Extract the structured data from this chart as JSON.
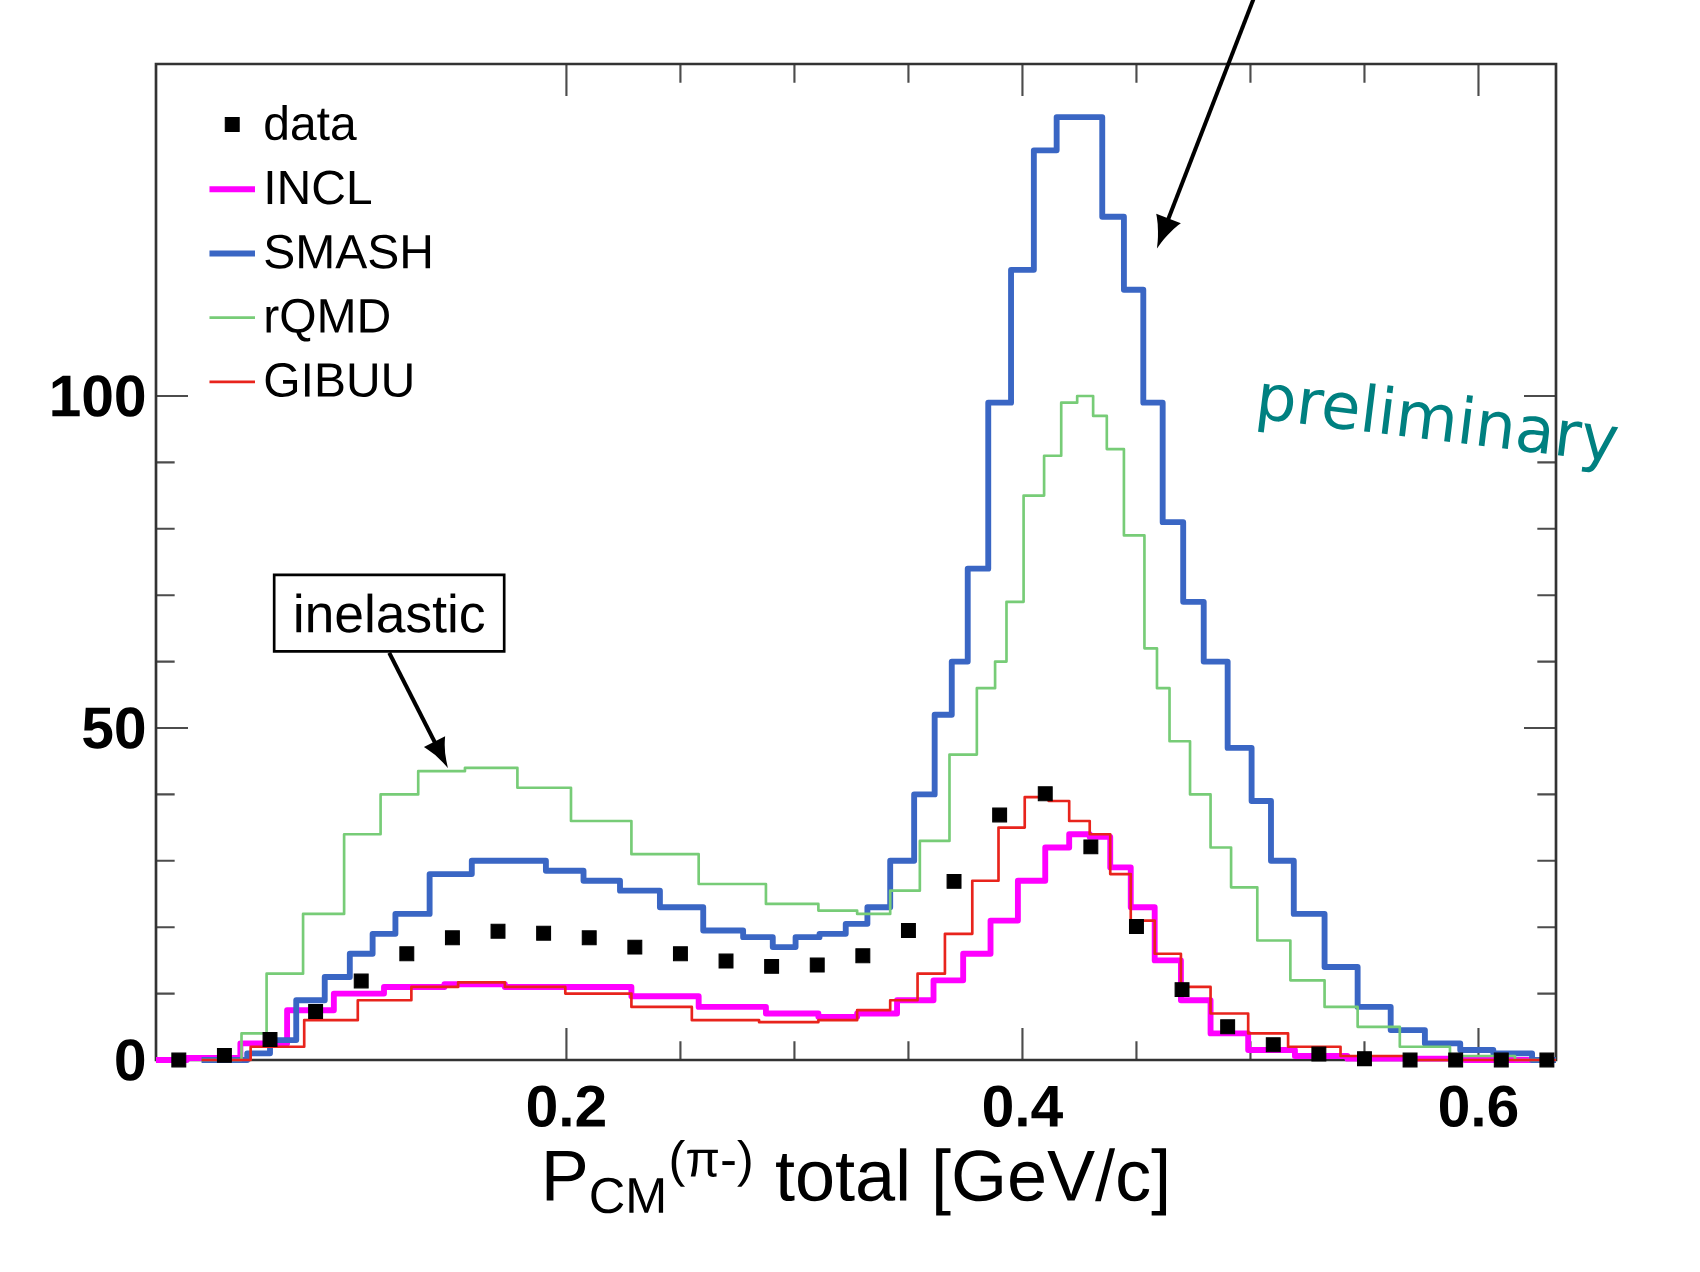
{
  "chart_data": {
    "type": "step",
    "xlabel": "P$_{CM}$$^{(π-)}$ total [GeV/c]",
    "xlim": [
      0.02,
      0.634
    ],
    "ylim": [
      0,
      150
    ],
    "xticks": [
      0.2,
      0.4,
      0.6
    ],
    "yticks": [
      0,
      50,
      100
    ],
    "legend": "top left",
    "marker": "none",
    "series": [
      {
        "name": "data",
        "type": "scatter",
        "marker": "square",
        "color": "#000000",
        "x": [
          0.03,
          0.05,
          0.07,
          0.09,
          0.11,
          0.13,
          0.15,
          0.17,
          0.19,
          0.21,
          0.23,
          0.25,
          0.27,
          0.29,
          0.31,
          0.33,
          0.35,
          0.37,
          0.39,
          0.41,
          0.43,
          0.45,
          0.47,
          0.49,
          0.51,
          0.53,
          0.55,
          0.57,
          0.59,
          0.61,
          0.63
        ],
        "values": [
          0,
          0.7,
          3.1,
          7.3,
          11.9,
          16.0,
          18.4,
          19.4,
          19.1,
          18.4,
          17.0,
          16.0,
          14.9,
          14.1,
          14.3,
          15.7,
          19.5,
          26.9,
          36.9,
          40.1,
          32.1,
          20.1,
          10.6,
          5.0,
          2.3,
          0.9,
          0.2,
          0,
          0,
          0,
          0
        ]
      },
      {
        "name": "INCL",
        "color": "#ff00ff",
        "x": [
          0.02,
          0.047,
          0.067,
          0.088,
          0.108,
          0.132,
          0.161,
          0.185,
          0.214,
          0.243,
          0.273,
          0.302,
          0.319,
          0.336,
          0.354,
          0.368,
          0.38,
          0.392,
          0.404,
          0.416,
          0.425,
          0.434,
          0.443,
          0.452,
          0.464,
          0.475,
          0.49,
          0.508,
          0.531,
          0.554,
          0.634
        ],
        "values": [
          0,
          0.3,
          2.5,
          7.5,
          10,
          11,
          11.4,
          11,
          11,
          9.6,
          8,
          7,
          6.5,
          7,
          9,
          12,
          16,
          21,
          27,
          32,
          34,
          33.6,
          29,
          23,
          15,
          9,
          4,
          1.5,
          0.6,
          0.2,
          0
        ]
      },
      {
        "name": "SMASH",
        "color": "#3a66c4",
        "x": [
          0.04,
          0.055,
          0.065,
          0.075,
          0.088,
          0.1,
          0.11,
          0.12,
          0.13,
          0.15,
          0.167,
          0.182,
          0.2,
          0.215,
          0.232,
          0.25,
          0.27,
          0.285,
          0.296,
          0.305,
          0.317,
          0.328,
          0.336,
          0.348,
          0.357,
          0.366,
          0.372,
          0.38,
          0.39,
          0.4,
          0.41,
          0.42,
          0.43,
          0.44,
          0.449,
          0.457,
          0.466,
          0.475,
          0.484,
          0.496,
          0.505,
          0.513,
          0.525,
          0.54,
          0.554,
          0.569,
          0.584,
          0.6,
          0.613,
          0.634
        ],
        "values": [
          0,
          0,
          1,
          3,
          9,
          12.5,
          16,
          19,
          22,
          28,
          30,
          30,
          28.5,
          27,
          25.5,
          23,
          19.5,
          18.5,
          17,
          18.5,
          19,
          20.5,
          23,
          30,
          40,
          52,
          60,
          74,
          99,
          119,
          137,
          142,
          142,
          127,
          116,
          99,
          81,
          69,
          60,
          47,
          39,
          30,
          22,
          14,
          8,
          4.5,
          2.5,
          1.5,
          1,
          0
        ]
      },
      {
        "name": "rQMD",
        "color": "#77cc77",
        "x": [
          0.04,
          0.053,
          0.062,
          0.075,
          0.094,
          0.111,
          0.126,
          0.144,
          0.167,
          0.19,
          0.214,
          0.243,
          0.273,
          0.302,
          0.319,
          0.336,
          0.348,
          0.362,
          0.374,
          0.386,
          0.39,
          0.396,
          0.405,
          0.414,
          0.42,
          0.428,
          0.434,
          0.44,
          0.449,
          0.458,
          0.46,
          0.469,
          0.478,
          0.487,
          0.496,
          0.51,
          0.525,
          0.54,
          0.554,
          0.577,
          0.598,
          0.634
        ],
        "values": [
          0,
          0,
          4,
          13,
          22,
          34,
          40,
          43.5,
          44,
          41,
          36,
          31,
          26.5,
          23.5,
          22.5,
          22,
          25.5,
          33,
          46,
          56,
          60,
          69,
          85,
          91,
          99,
          100,
          97,
          92,
          79,
          62,
          56,
          48,
          40,
          32,
          26,
          18,
          12,
          8,
          5,
          2,
          0.6,
          0
        ]
      },
      {
        "name": "GIBUU",
        "color": "#e8241c",
        "x": [
          0.04,
          0.05,
          0.073,
          0.097,
          0.12,
          0.144,
          0.161,
          0.185,
          0.214,
          0.243,
          0.267,
          0.302,
          0.319,
          0.336,
          0.348,
          0.36,
          0.372,
          0.384,
          0.395,
          0.407,
          0.416,
          0.425,
          0.434,
          0.443,
          0.452,
          0.464,
          0.475,
          0.49,
          0.508,
          0.525,
          0.554,
          0.584,
          0.634
        ],
        "values": [
          0,
          0,
          2,
          6,
          9,
          11,
          11.7,
          11,
          10,
          8,
          6,
          5.7,
          6,
          7.5,
          9,
          13,
          19,
          27,
          35,
          39.6,
          39,
          36,
          34,
          28,
          21,
          16,
          11,
          7,
          4,
          2,
          0.6,
          0,
          0
        ]
      }
    ],
    "annotations": [
      "preliminary",
      {
        "text": "inelastic",
        "x": 0.148,
        "y": 44
      }
    ]
  }
}
